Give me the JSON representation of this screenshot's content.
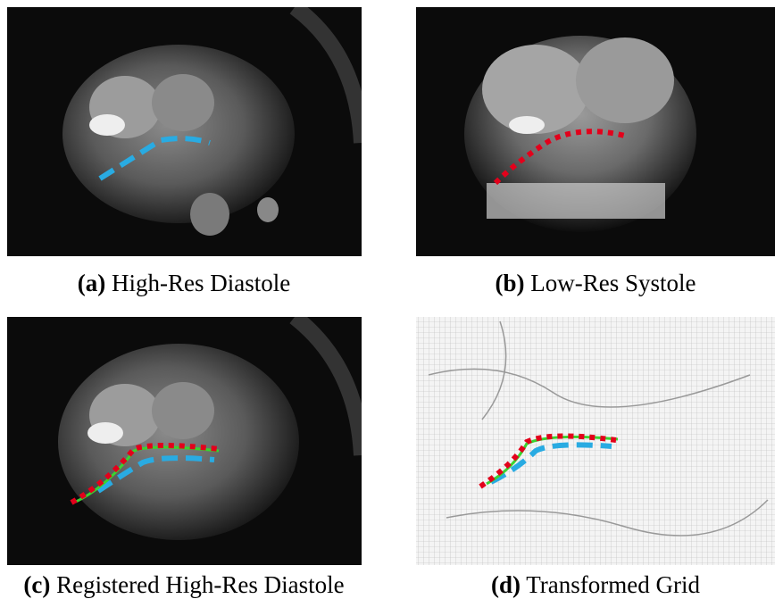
{
  "panels": [
    {
      "label": "(a)",
      "caption": "High-Res Diastole"
    },
    {
      "label": "(b)",
      "caption": "Low-Res Systole"
    },
    {
      "label": "(c)",
      "caption": "Registered High-Res Diastole"
    },
    {
      "label": "(d)",
      "caption": "Transformed Grid"
    }
  ]
}
